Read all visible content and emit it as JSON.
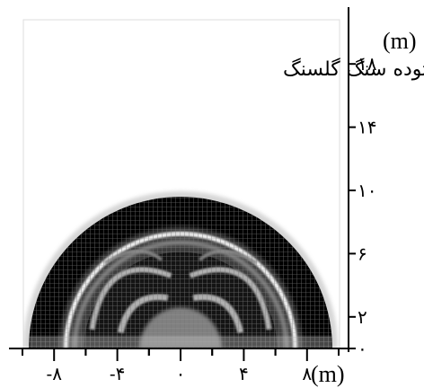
{
  "chart_data": {
    "type": "heatmap",
    "title": "",
    "annotation": "توده سنگ گلسنگ",
    "x_axis": {
      "unit": "(m)",
      "ticks": [
        -8,
        -4,
        0,
        4,
        8
      ],
      "tick_labels": [
        "-۸",
        "-۴",
        "۰",
        "۴",
        "۸"
      ],
      "range": [
        -10.6,
        10.6
      ]
    },
    "y_axis": {
      "unit": "(m)",
      "ticks": [
        0,
        2,
        6,
        10,
        14,
        18
      ],
      "tick_labels": [
        "۰",
        "۲",
        "۶",
        "۱۰",
        "۱۴",
        "۱۸"
      ],
      "range": [
        0,
        20.5
      ]
    },
    "field": {
      "shape": "semicircular reflection halo",
      "outer_radius_m": 9.6,
      "colors": {
        "background": "#ffffff",
        "dark": "#000000",
        "light": "#f0f0f0"
      }
    }
  }
}
